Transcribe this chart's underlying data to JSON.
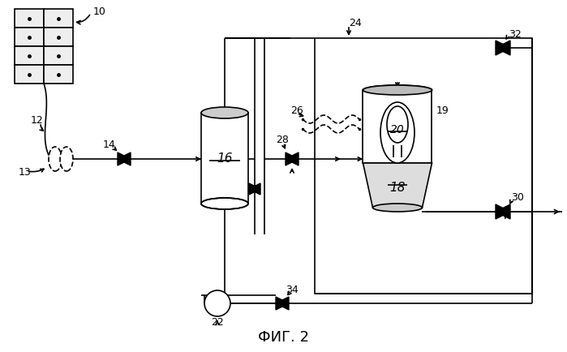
{
  "title": "ФИГ. 2",
  "bg": "#ffffff",
  "lc": "#000000",
  "gray": "#d0d0d0"
}
